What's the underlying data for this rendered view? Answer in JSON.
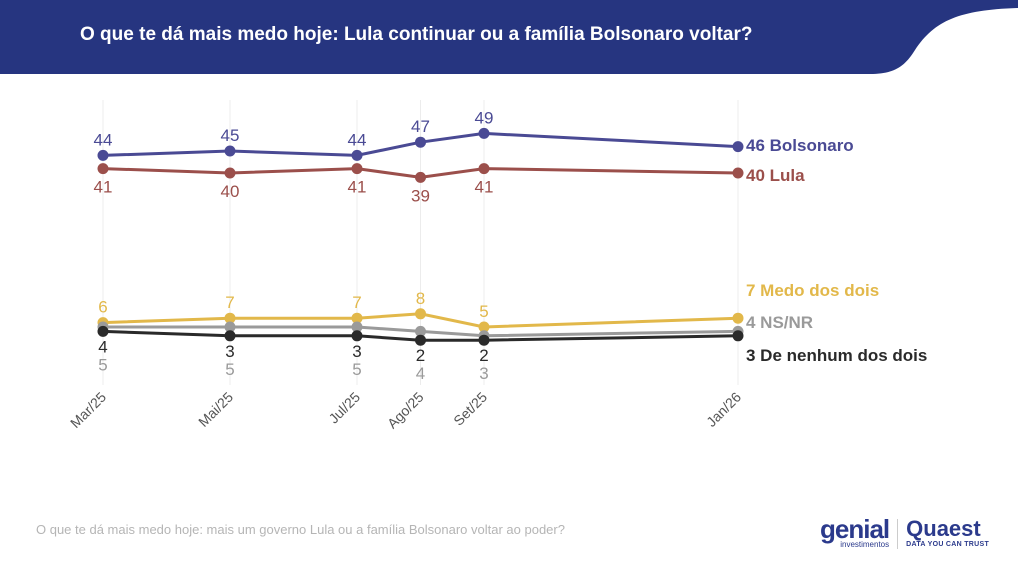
{
  "header": {
    "title": "O que te dá mais medo hoje: Lula continuar ou a família Bolsonaro voltar?",
    "color": "#263580"
  },
  "footnote": "O que te dá mais medo hoje: mais um governo Lula ou a família Bolsonaro voltar ao poder?",
  "logos": {
    "genial": "genial",
    "genial_sub": "investimentos",
    "quaest": "Quaest",
    "quaest_sub": "DATA YOU CAN TRUST"
  },
  "chart_data": {
    "type": "line",
    "categories": [
      "Mar/25",
      "Mai/25",
      "Jul/25",
      "Ago/25",
      "Set/25",
      "Jan/26"
    ],
    "month_index": [
      0,
      2,
      4,
      5,
      6,
      10
    ],
    "grid": "vertical",
    "series": [
      {
        "name": "Bolsonaro",
        "color": "#4a4a94",
        "values": [
          44,
          45,
          44,
          47,
          49,
          46
        ],
        "end_label": "46 Bolsonaro",
        "label_pos": "above"
      },
      {
        "name": "Lula",
        "color": "#9b4f4b",
        "values": [
          41,
          40,
          41,
          39,
          41,
          40
        ],
        "end_label": "40 Lula",
        "label_pos": "above"
      },
      {
        "name": "Medo dos dois",
        "color": "#e2b84a",
        "values": [
          6,
          7,
          7,
          8,
          5,
          7
        ],
        "end_label": "7 Medo dos dois",
        "label_pos": "above"
      },
      {
        "name": "NS/NR",
        "color": "#9a9a9a",
        "values": [
          5,
          5,
          5,
          4,
          3,
          4
        ],
        "end_label": "4 NS/NR",
        "label_pos": "above"
      },
      {
        "name": "De nenhum dos dois",
        "color": "#2a2a2a",
        "values": [
          4,
          3,
          3,
          2,
          2,
          3
        ],
        "end_label": "3 De nenhum dos dois",
        "label_pos": "below"
      }
    ]
  }
}
